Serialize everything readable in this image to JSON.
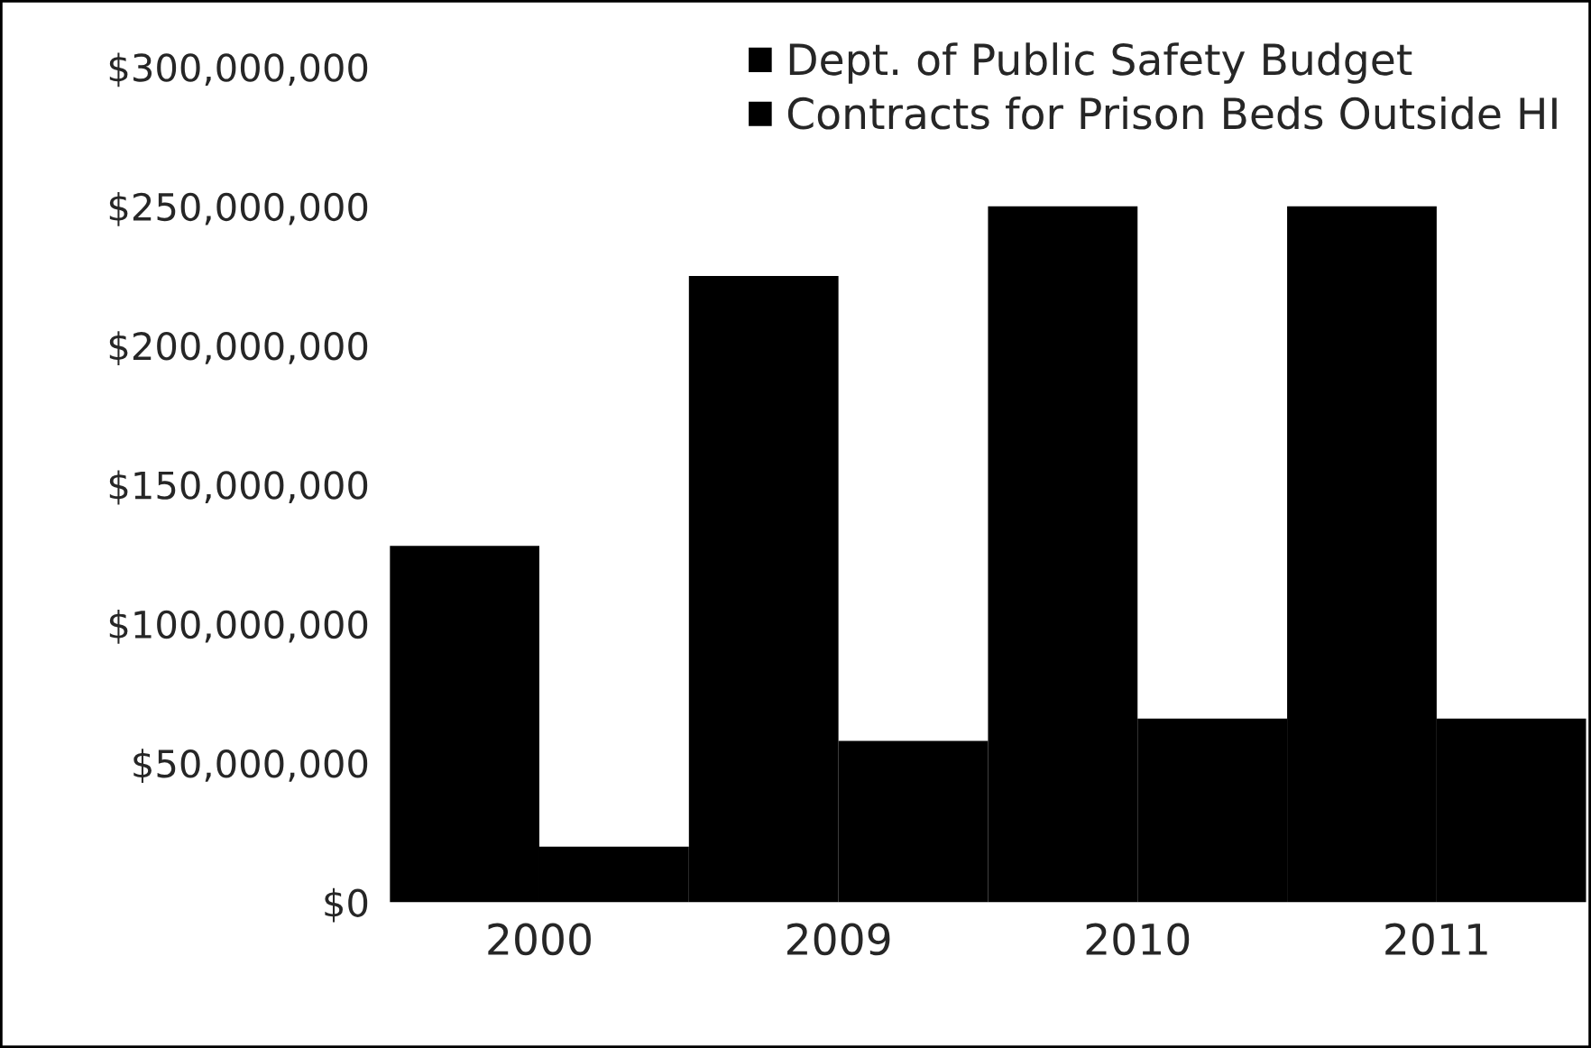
{
  "chart_data": {
    "type": "bar",
    "categories": [
      "2000",
      "2009",
      "2010",
      "2011"
    ],
    "series": [
      {
        "name": "Dept. of Public Safety Budget",
        "color": "#000000",
        "values": [
          128000000,
          225000000,
          250000000,
          250000000
        ]
      },
      {
        "name": "Contracts for Prison Beds Outside HI",
        "color": "#000000",
        "values": [
          20000000,
          58000000,
          66000000,
          66000000
        ]
      }
    ],
    "ylim": [
      0,
      300000000
    ],
    "yticks": [
      {
        "value": 0,
        "label": "$0"
      },
      {
        "value": 50000000,
        "label": "$50,000,000"
      },
      {
        "value": 100000000,
        "label": "$100,000,000"
      },
      {
        "value": 150000000,
        "label": "$150,000,000"
      },
      {
        "value": 200000000,
        "label": "$200,000,000"
      },
      {
        "value": 250000000,
        "label": "$250,000,000"
      },
      {
        "value": 300000000,
        "label": "$300,000,000"
      }
    ],
    "grid": false,
    "legend": "top right"
  }
}
